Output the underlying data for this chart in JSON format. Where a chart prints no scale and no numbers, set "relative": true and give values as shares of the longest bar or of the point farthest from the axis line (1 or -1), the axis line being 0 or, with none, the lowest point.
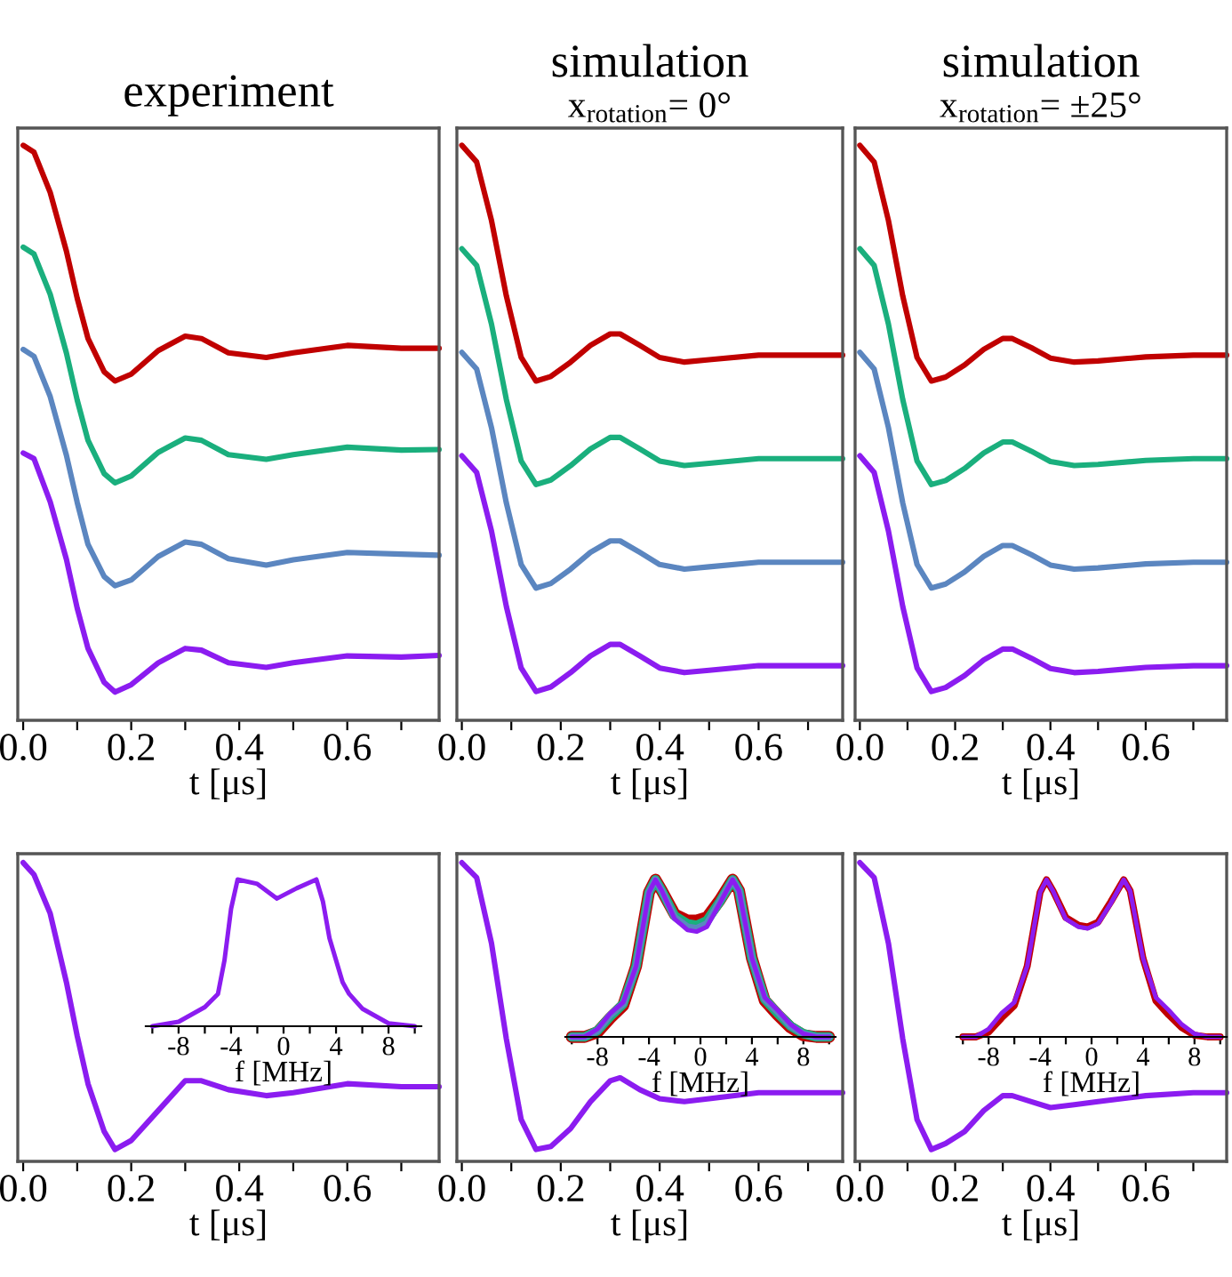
{
  "chart_data": [
    {
      "type": "line",
      "title": "experiment",
      "xlabel": "t [μs]",
      "relative": true,
      "tick_labels": "x",
      "xlim": [
        -0.01,
        0.77
      ],
      "xticks": [
        {
          "value": 0,
          "label": "0.0"
        },
        {
          "value": 0.1,
          "label": null
        },
        0.2,
        {
          "value": 0.3,
          "label": null
        },
        0.4,
        {
          "value": 0.5,
          "label": null
        },
        0.6,
        {
          "value": 0.7,
          "label": null
        }
      ],
      "x": [
        0,
        0.02,
        0.05,
        0.08,
        0.1,
        0.12,
        0.15,
        0.17,
        0.2,
        0.25,
        0.3,
        0.33,
        0.38,
        0.45,
        0.5,
        0.6,
        0.7,
        0.77
      ],
      "series": [
        {
          "color": "#c00000",
          "values": [
            1.0,
            0.988,
            0.918,
            0.816,
            0.734,
            0.664,
            0.606,
            0.59,
            0.602,
            0.643,
            0.668,
            0.664,
            0.639,
            0.631,
            0.639,
            0.652,
            0.647,
            0.647
          ]
        },
        {
          "color": "#1aaf7d",
          "values": [
            0.823,
            0.811,
            0.741,
            0.639,
            0.557,
            0.487,
            0.429,
            0.413,
            0.425,
            0.466,
            0.491,
            0.487,
            0.462,
            0.454,
            0.462,
            0.475,
            0.47,
            0.471
          ]
        },
        {
          "color": "#5b86c0",
          "values": [
            0.645,
            0.633,
            0.563,
            0.461,
            0.379,
            0.306,
            0.25,
            0.234,
            0.244,
            0.285,
            0.31,
            0.306,
            0.281,
            0.27,
            0.279,
            0.292,
            0.289,
            0.287
          ]
        },
        {
          "color": "#8b1cf0",
          "values": [
            0.465,
            0.455,
            0.38,
            0.28,
            0.195,
            0.125,
            0.066,
            0.049,
            0.062,
            0.1,
            0.125,
            0.122,
            0.1,
            0.092,
            0.1,
            0.112,
            0.11,
            0.113
          ]
        }
      ]
    },
    {
      "type": "line",
      "title": "simulation",
      "subtitle": "x$_{rotation}$= 0°",
      "xlabel": "t [μs]",
      "relative": true,
      "tick_labels": "x",
      "xlim": [
        -0.01,
        0.77
      ],
      "xticks": [
        {
          "value": 0,
          "label": "0.0"
        },
        {
          "value": 0.1,
          "label": null
        },
        0.2,
        {
          "value": 0.3,
          "label": null
        },
        0.4,
        {
          "value": 0.5,
          "label": null
        },
        0.6,
        {
          "value": 0.7,
          "label": null
        }
      ],
      "x": [
        0,
        0.03,
        0.06,
        0.09,
        0.12,
        0.15,
        0.18,
        0.22,
        0.26,
        0.3,
        0.32,
        0.36,
        0.4,
        0.45,
        0.5,
        0.6,
        0.7,
        0.77
      ],
      "series": [
        {
          "color": "#c00000",
          "values": [
            1.0,
            0.971,
            0.869,
            0.738,
            0.631,
            0.59,
            0.598,
            0.623,
            0.652,
            0.672,
            0.672,
            0.652,
            0.631,
            0.623,
            0.627,
            0.635,
            0.635,
            0.635
          ]
        },
        {
          "color": "#1aaf7d",
          "values": [
            0.82,
            0.791,
            0.689,
            0.558,
            0.451,
            0.41,
            0.418,
            0.443,
            0.472,
            0.492,
            0.492,
            0.472,
            0.451,
            0.443,
            0.447,
            0.455,
            0.455,
            0.455
          ]
        },
        {
          "color": "#5b86c0",
          "values": [
            0.64,
            0.611,
            0.509,
            0.378,
            0.271,
            0.23,
            0.238,
            0.263,
            0.292,
            0.312,
            0.312,
            0.292,
            0.271,
            0.263,
            0.267,
            0.275,
            0.275,
            0.275
          ]
        },
        {
          "color": "#8b1cf0",
          "values": [
            0.46,
            0.431,
            0.329,
            0.198,
            0.091,
            0.05,
            0.058,
            0.083,
            0.112,
            0.132,
            0.132,
            0.112,
            0.091,
            0.083,
            0.087,
            0.095,
            0.095,
            0.095
          ]
        }
      ]
    },
    {
      "type": "line",
      "title": "simulation",
      "subtitle": "x$_{rotation}$= ±25°",
      "xlabel": "t [μs]",
      "relative": true,
      "tick_labels": "x",
      "xlim": [
        -0.01,
        0.77
      ],
      "xticks": [
        {
          "value": 0,
          "label": "0.0"
        },
        {
          "value": 0.1,
          "label": null
        },
        0.2,
        {
          "value": 0.3,
          "label": null
        },
        0.4,
        {
          "value": 0.5,
          "label": null
        },
        0.6,
        {
          "value": 0.7,
          "label": null
        }
      ],
      "x": [
        0,
        0.03,
        0.06,
        0.09,
        0.12,
        0.15,
        0.18,
        0.22,
        0.26,
        0.3,
        0.32,
        0.36,
        0.4,
        0.45,
        0.5,
        0.6,
        0.7,
        0.77
      ],
      "series": [
        {
          "color": "#c00000",
          "values": [
            1.0,
            0.971,
            0.869,
            0.738,
            0.631,
            0.59,
            0.597,
            0.618,
            0.645,
            0.664,
            0.664,
            0.648,
            0.63,
            0.623,
            0.625,
            0.632,
            0.635,
            0.635
          ]
        },
        {
          "color": "#1aaf7d",
          "values": [
            0.82,
            0.791,
            0.689,
            0.558,
            0.451,
            0.41,
            0.417,
            0.438,
            0.465,
            0.484,
            0.484,
            0.468,
            0.45,
            0.443,
            0.445,
            0.452,
            0.455,
            0.455
          ]
        },
        {
          "color": "#5b86c0",
          "values": [
            0.64,
            0.611,
            0.509,
            0.378,
            0.271,
            0.23,
            0.237,
            0.258,
            0.285,
            0.304,
            0.304,
            0.288,
            0.27,
            0.263,
            0.265,
            0.272,
            0.275,
            0.275
          ]
        },
        {
          "color": "#8b1cf0",
          "values": [
            0.46,
            0.431,
            0.329,
            0.198,
            0.091,
            0.05,
            0.057,
            0.078,
            0.105,
            0.124,
            0.124,
            0.108,
            0.09,
            0.083,
            0.085,
            0.092,
            0.095,
            0.095
          ]
        }
      ]
    },
    {
      "type": "line",
      "xlabel": "t [μs]",
      "relative": true,
      "tick_labels": "x",
      "xlim": [
        -0.01,
        0.77
      ],
      "xticks": [
        {
          "value": 0,
          "label": "0.0"
        },
        {
          "value": 0.1,
          "label": null
        },
        0.2,
        {
          "value": 0.3,
          "label": null
        },
        0.4,
        {
          "value": 0.5,
          "label": null
        },
        0.6,
        {
          "value": 0.7,
          "label": null
        }
      ],
      "x": [
        0,
        0.02,
        0.05,
        0.08,
        0.1,
        0.12,
        0.15,
        0.17,
        0.2,
        0.25,
        0.3,
        0.33,
        0.38,
        0.45,
        0.5,
        0.6,
        0.7,
        0.77
      ],
      "series": [
        {
          "color": "#8b1cf0",
          "values": [
            1.0,
            0.96,
            0.83,
            0.6,
            0.42,
            0.26,
            0.1,
            0.04,
            0.07,
            0.17,
            0.27,
            0.27,
            0.24,
            0.22,
            0.23,
            0.26,
            0.25,
            0.25
          ]
        }
      ]
    },
    {
      "type": "line",
      "xlabel": "t [μs]",
      "relative": true,
      "tick_labels": "x",
      "xlim": [
        -0.01,
        0.77
      ],
      "xticks": [
        {
          "value": 0,
          "label": "0.0"
        },
        {
          "value": 0.1,
          "label": null
        },
        0.2,
        {
          "value": 0.3,
          "label": null
        },
        0.4,
        {
          "value": 0.5,
          "label": null
        },
        0.6,
        {
          "value": 0.7,
          "label": null
        }
      ],
      "x": [
        0,
        0.03,
        0.06,
        0.09,
        0.12,
        0.15,
        0.18,
        0.22,
        0.26,
        0.3,
        0.32,
        0.36,
        0.4,
        0.45,
        0.5,
        0.6,
        0.7,
        0.77
      ],
      "series": [
        {
          "color": "#8b1cf0",
          "values": [
            1.0,
            0.95,
            0.73,
            0.41,
            0.14,
            0.04,
            0.05,
            0.11,
            0.2,
            0.27,
            0.28,
            0.24,
            0.21,
            0.2,
            0.21,
            0.23,
            0.23,
            0.23
          ]
        }
      ]
    },
    {
      "type": "line",
      "xlabel": "t [μs]",
      "relative": true,
      "tick_labels": "x",
      "xlim": [
        -0.01,
        0.77
      ],
      "xticks": [
        {
          "value": 0,
          "label": "0.0"
        },
        {
          "value": 0.1,
          "label": null
        },
        0.2,
        {
          "value": 0.3,
          "label": null
        },
        0.4,
        {
          "value": 0.5,
          "label": null
        },
        0.6,
        {
          "value": 0.7,
          "label": null
        }
      ],
      "x": [
        0,
        0.03,
        0.06,
        0.09,
        0.12,
        0.15,
        0.18,
        0.22,
        0.26,
        0.3,
        0.32,
        0.36,
        0.4,
        0.45,
        0.5,
        0.6,
        0.7,
        0.77
      ],
      "series": [
        {
          "color": "#8b1cf0",
          "values": [
            1.0,
            0.95,
            0.73,
            0.41,
            0.14,
            0.04,
            0.06,
            0.1,
            0.17,
            0.22,
            0.22,
            0.2,
            0.18,
            0.19,
            0.2,
            0.22,
            0.23,
            0.23
          ]
        }
      ]
    },
    {
      "type": "line",
      "xlabel": "f [MHz]",
      "relative": true,
      "tick_labels": "x",
      "xlim": [
        -10.5,
        10.5
      ],
      "xticks": [
        {
          "value": -10,
          "label": null
        },
        -8,
        {
          "value": -6,
          "label": null
        },
        -4,
        {
          "value": -2,
          "label": null
        },
        0,
        {
          "value": 2,
          "label": null
        },
        4,
        {
          "value": 6,
          "label": null
        },
        8,
        {
          "value": 10,
          "label": null
        }
      ],
      "x": [
        -10,
        -8,
        -6,
        -5,
        -4.5,
        -4,
        -3.5,
        -2,
        -0.5,
        1,
        2.5,
        3,
        3.5,
        4.5,
        5,
        6,
        8,
        10
      ],
      "series": [
        {
          "color": "#8b1cf0",
          "values": [
            0,
            0.03,
            0.13,
            0.22,
            0.45,
            0.8,
            1.0,
            0.97,
            0.87,
            0.94,
            1.0,
            0.85,
            0.6,
            0.3,
            0.22,
            0.12,
            0.02,
            0
          ]
        }
      ]
    },
    {
      "type": "line",
      "xlabel": "f [MHz]",
      "relative": true,
      "tick_labels": "x",
      "xlim": [
        -10.5,
        10.5
      ],
      "xticks": [
        {
          "value": -10,
          "label": null
        },
        -8,
        {
          "value": -6,
          "label": null
        },
        -4,
        {
          "value": -2,
          "label": null
        },
        0,
        {
          "value": 2,
          "label": null
        },
        4,
        {
          "value": 6,
          "label": null
        },
        8,
        {
          "value": 10,
          "label": null
        }
      ],
      "x": [
        -10,
        -9,
        -8,
        -7,
        -6,
        -5,
        -4,
        -3.5,
        -3,
        -2,
        -1,
        -0.3,
        0.5,
        1.5,
        2.5,
        3,
        4,
        5,
        6,
        7,
        8,
        9,
        10
      ],
      "series": [
        {
          "color": "#c00000",
          "values": [
            0,
            0,
            0.03,
            0.12,
            0.2,
            0.45,
            0.92,
            1.0,
            0.93,
            0.78,
            0.74,
            0.74,
            0.76,
            0.87,
            1.0,
            0.93,
            0.5,
            0.23,
            0.14,
            0.06,
            0.01,
            0,
            0
          ]
        },
        {
          "color": "#1aaf7d",
          "values": [
            0,
            0,
            0.04,
            0.13,
            0.21,
            0.45,
            0.92,
            1.0,
            0.93,
            0.77,
            0.72,
            0.71,
            0.74,
            0.86,
            1.0,
            0.93,
            0.5,
            0.24,
            0.15,
            0.07,
            0.02,
            0,
            0
          ]
        },
        {
          "color": "#5b86c0",
          "values": [
            0,
            0,
            0.04,
            0.14,
            0.21,
            0.45,
            0.92,
            1.0,
            0.93,
            0.76,
            0.7,
            0.69,
            0.72,
            0.86,
            1.0,
            0.93,
            0.5,
            0.24,
            0.16,
            0.07,
            0.02,
            0,
            0
          ]
        },
        {
          "color": "#8b1cf0",
          "values": [
            0,
            0,
            0.05,
            0.15,
            0.22,
            0.45,
            0.92,
            1.0,
            0.93,
            0.75,
            0.68,
            0.67,
            0.7,
            0.85,
            1.0,
            0.93,
            0.5,
            0.25,
            0.17,
            0.08,
            0.02,
            0,
            0
          ]
        }
      ]
    },
    {
      "type": "line",
      "xlabel": "f [MHz]",
      "relative": true,
      "tick_labels": "x",
      "xlim": [
        -10.5,
        10.5
      ],
      "xticks": [
        {
          "value": -10,
          "label": null
        },
        -8,
        {
          "value": -6,
          "label": null
        },
        -4,
        {
          "value": -2,
          "label": null
        },
        0,
        {
          "value": 2,
          "label": null
        },
        4,
        {
          "value": 6,
          "label": null
        },
        8,
        {
          "value": 10,
          "label": null
        }
      ],
      "x": [
        -10,
        -9,
        -8,
        -7,
        -6,
        -5,
        -4,
        -3.5,
        -3,
        -2,
        -1,
        -0.3,
        0.5,
        1.5,
        2.5,
        3,
        4,
        5,
        6,
        7,
        8,
        9,
        10
      ],
      "series": [
        {
          "color": "#c00000",
          "values": [
            0,
            0,
            0.03,
            0.12,
            0.2,
            0.45,
            0.92,
            1.0,
            0.93,
            0.76,
            0.71,
            0.7,
            0.73,
            0.86,
            1.0,
            0.93,
            0.5,
            0.23,
            0.14,
            0.06,
            0.01,
            0,
            0
          ]
        },
        {
          "color": "#8b1cf0",
          "values": [
            0,
            0,
            0.05,
            0.15,
            0.22,
            0.45,
            0.92,
            1.0,
            0.93,
            0.75,
            0.7,
            0.69,
            0.72,
            0.85,
            1.0,
            0.93,
            0.5,
            0.25,
            0.17,
            0.08,
            0.02,
            0,
            0
          ]
        }
      ]
    }
  ]
}
